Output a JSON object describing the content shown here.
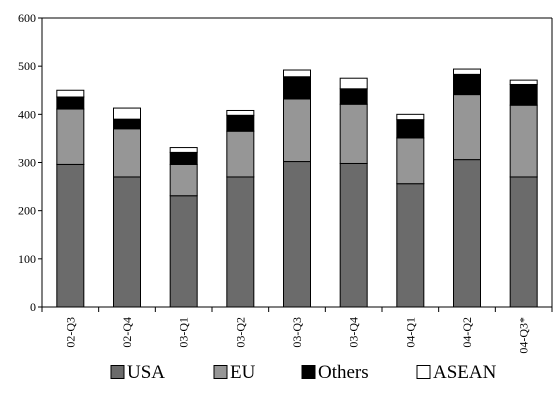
{
  "chart_data": {
    "type": "bar",
    "stacked": true,
    "categories": [
      "02-Q3",
      "02-Q4",
      "03-Q1",
      "03-Q2",
      "03-Q3",
      "03-Q4",
      "04-Q1",
      "04-Q2",
      "04-Q3*"
    ],
    "series": [
      {
        "name": "USA",
        "color": "#6b6b6b",
        "values": [
          296,
          270,
          231,
          270,
          302,
          298,
          256,
          306,
          270
        ]
      },
      {
        "name": "EU",
        "color": "#969696",
        "values": [
          115,
          100,
          65,
          95,
          130,
          123,
          95,
          135,
          149
        ]
      },
      {
        "name": "Others",
        "color": "#000000",
        "values": [
          25,
          20,
          25,
          33,
          46,
          32,
          38,
          42,
          43
        ]
      },
      {
        "name": "ASEAN",
        "color": "#ffffff",
        "values": [
          14,
          23,
          10,
          10,
          14,
          22,
          11,
          11,
          9
        ]
      }
    ],
    "ylim": [
      0,
      600
    ],
    "yticks": [
      0,
      100,
      200,
      300,
      400,
      500,
      600
    ],
    "grid": false,
    "legend": "bottom",
    "title": "",
    "xlabel": "",
    "ylabel": ""
  }
}
